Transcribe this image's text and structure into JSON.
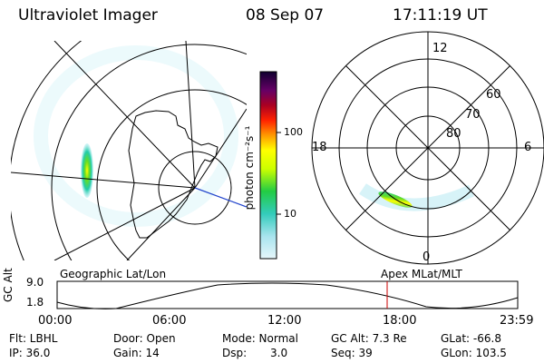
{
  "header": {
    "instrument": "Ultraviolet Imager",
    "date": "08 Sep 07",
    "time": "17:11:19 UT"
  },
  "colorbar": {
    "label": "photon cm⁻²s⁻¹",
    "ticks": [
      "100",
      "10"
    ]
  },
  "polar_plot": {
    "mlt_labels": {
      "top": "12",
      "left": "18",
      "right": "6",
      "bottom": "0"
    },
    "lat_labels": [
      "60",
      "70",
      "80"
    ]
  },
  "altitude_plot": {
    "left_caption": "Geographic Lat/Lon",
    "right_caption": "Apex MLat/MLT",
    "ylabel": "GC Alt",
    "ytick_top": "9.0",
    "ytick_bottom": "1.8",
    "xticks": [
      "00:00",
      "06:00",
      "12:00",
      "18:00",
      "23:59"
    ]
  },
  "info": {
    "filter": "Flt: LBHL",
    "ip": "IP: 36.0",
    "door": "Door: Open",
    "gain": "Gain: 14",
    "mode": "Mode: Normal",
    "dsp_label": "Dsp:",
    "dsp_value": "3.0",
    "gc_alt": "GC Alt: 7.3 Re",
    "seq": "Seq: 39",
    "glat": "GLat: -66.8",
    "glon": "GLon: 103.5"
  },
  "colors": {
    "marker": "#cc0000",
    "track": "#2244cc"
  }
}
